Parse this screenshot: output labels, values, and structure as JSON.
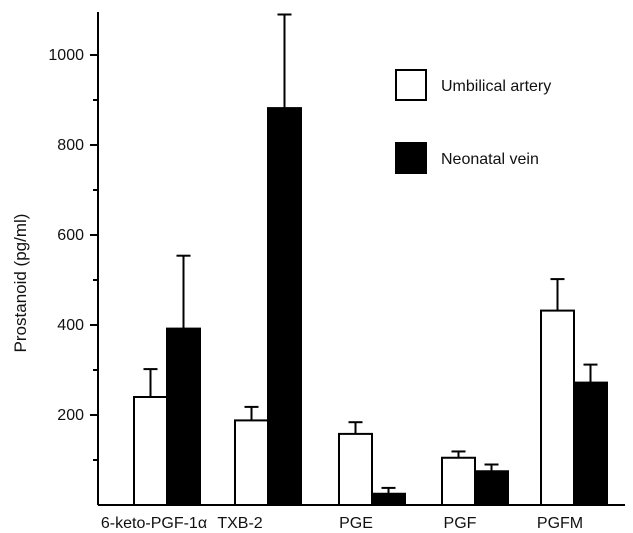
{
  "chart_data": {
    "type": "bar",
    "title": "",
    "xlabel": "",
    "ylabel": "Prostanoid (pg/ml)",
    "ylim": [
      0,
      1100
    ],
    "yticks": [
      200,
      400,
      600,
      800,
      1000
    ],
    "ytick_labels": [
      "200",
      "400",
      "600",
      "800",
      "1000"
    ],
    "minor_ticks": [
      100,
      300,
      500,
      700,
      900
    ],
    "grid": false,
    "legend_position": "top-right",
    "categories": [
      "6-keto-PGF-1α",
      "TXB-2",
      "PGE",
      "PGF",
      "PGFM"
    ],
    "series": [
      {
        "name": "Umbilical artery",
        "color": "#ffffff",
        "values": [
          240,
          188,
          158,
          105,
          432
        ],
        "error": [
          62,
          30,
          26,
          14,
          70
        ]
      },
      {
        "name": "Neonatal vein",
        "color": "#000000",
        "values": [
          392,
          882,
          25,
          75,
          272
        ],
        "error": [
          162,
          208,
          13,
          15,
          40
        ]
      }
    ]
  }
}
